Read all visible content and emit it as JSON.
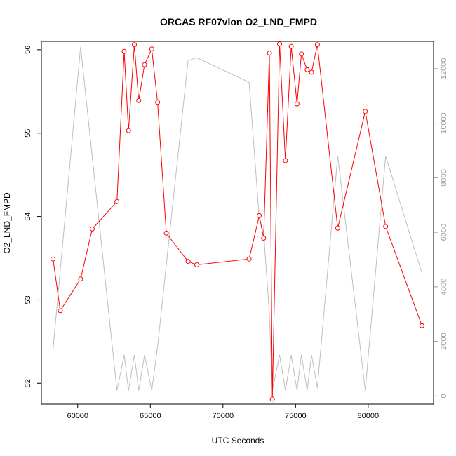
{
  "chart_data": {
    "type": "line",
    "title": "ORCAS RF07vlon O2_LND_FMPD",
    "xlabel": "UTC Seconds",
    "ylabel": "O2_LND_FMPD",
    "xlim": [
      57500,
      84500
    ],
    "ylim": [
      51.75,
      56.1
    ],
    "y2lim": [
      -300,
      13000
    ],
    "x_ticks": [
      60000,
      65000,
      70000,
      75000,
      80000
    ],
    "x_tick_labels": [
      "60000",
      "65000",
      "70000",
      "75000",
      "80000"
    ],
    "y_ticks": [
      52,
      53,
      54,
      55,
      56
    ],
    "y_tick_labels": [
      "52",
      "53",
      "54",
      "55",
      "56"
    ],
    "y2_ticks": [
      0,
      2000,
      4000,
      6000,
      8000,
      10000,
      12000
    ],
    "y2_tick_labels": [
      "0",
      "2000",
      "4000",
      "6000",
      "8000",
      "10000",
      "12000"
    ],
    "grid": false,
    "series": [
      {
        "axis": "left",
        "color": "#ff0000",
        "marker": "open-circle",
        "x": [
          58300,
          58800,
          60200,
          61000,
          62700,
          63200,
          63500,
          63900,
          64200,
          64600,
          65100,
          65500,
          66100,
          67600,
          68200,
          71800,
          72500,
          72800,
          73200,
          73400,
          73900,
          74300,
          74700,
          75100,
          75400,
          75800,
          76100,
          76500,
          77900,
          79800,
          81200,
          83700
        ],
        "values": [
          53.49,
          52.87,
          53.25,
          53.85,
          54.18,
          55.98,
          55.03,
          56.06,
          55.39,
          55.82,
          56.01,
          55.37,
          53.8,
          53.46,
          53.42,
          53.49,
          54.01,
          53.74,
          55.96,
          51.81,
          56.07,
          54.67,
          56.04,
          55.35,
          55.95,
          55.76,
          55.73,
          56.06,
          53.86,
          55.26,
          53.88,
          52.69
        ]
      },
      {
        "axis": "right",
        "color": "#bebebe",
        "x": [
          58300,
          60200,
          62700,
          63200,
          63500,
          63900,
          64200,
          64600,
          65100,
          65500,
          67600,
          68200,
          71800,
          72500,
          72800,
          73200,
          73400,
          73900,
          74300,
          74700,
          75100,
          75400,
          75800,
          76100,
          76500,
          77900,
          79800,
          81200,
          83700
        ],
        "values": [
          1700,
          12800,
          200,
          1500,
          200,
          1500,
          200,
          1500,
          200,
          1800,
          12300,
          12400,
          11500,
          6500,
          6000,
          3000,
          200,
          1500,
          200,
          1500,
          200,
          1500,
          200,
          1500,
          300,
          8800,
          200,
          8800,
          4500
        ]
      }
    ]
  }
}
